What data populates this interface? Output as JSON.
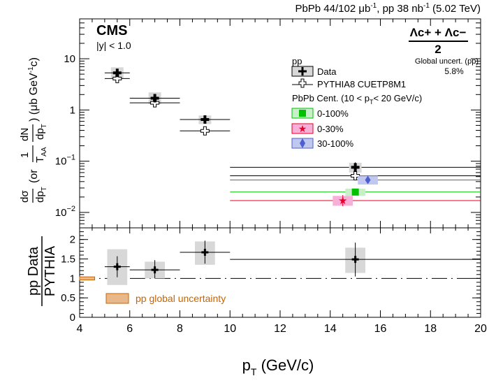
{
  "header": {
    "lumi_text": "PbPb 44/102 μb",
    "lumi_exp": "-1",
    "lumi_text2": ", pp 38 nb",
    "lumi_exp2": "-1",
    "lumi_text3": " (5.02 TeV)"
  },
  "top_panel": {
    "experiment": "CMS",
    "rapidity_cut": "|y| < 1.0",
    "particle_numerator": "Λc+ + Λc−",
    "particle_denominator": "2",
    "global_uncert_label": "Global uncert. (pp)",
    "global_uncert_value": "5.8%",
    "legend_pp_title": "pp",
    "legend_data": "Data",
    "legend_pythia": "PYTHIA8 CUETP8M1",
    "legend_pbpb_title": "PbPb Cent. (10 < p",
    "legend_pbpb_title_sub": "T",
    "legend_pbpb_title_end": "< 20 GeV/c)",
    "legend_0_100": "0-100%",
    "legend_0_30": "0-30%",
    "legend_30_100": "30-100%",
    "ylabel_parts": [
      "dσ",
      "dp",
      "T",
      "(or",
      "1",
      "T",
      "AA",
      "dN",
      "dp",
      "T",
      ") (μb GeV",
      "-1",
      "c)"
    ]
  },
  "bottom_panel": {
    "ylabel_num": "pp Data",
    "ylabel_den": "PYTHIA",
    "band_label": "pp global uncertainty"
  },
  "xaxis": {
    "label": "p",
    "label_sub": "T",
    "label_unit": " (GeV/c)"
  },
  "colors": {
    "green": "#00c000",
    "red": "#e8002a",
    "blue": "#4b5fd0",
    "orange_band": "#e8b88a",
    "orange_text": "#c86400"
  },
  "chart_data": [
    {
      "type": "scatter",
      "yscale": "log",
      "xlim": [
        4,
        20
      ],
      "ylim": [
        0.005,
        60
      ],
      "xticks": [
        4,
        6,
        8,
        10,
        12,
        14,
        16,
        18,
        20
      ],
      "yticks": [
        {
          "v": 0.01,
          "b": "10",
          "e": "−2"
        },
        {
          "v": 0.1,
          "b": "10",
          "e": "−1"
        },
        {
          "v": 1,
          "b": "1",
          "e": ""
        },
        {
          "v": 10,
          "b": "10",
          "e": ""
        }
      ],
      "series": [
        {
          "name": "Data",
          "points": [
            {
              "x": 5.5,
              "xlo": 5,
              "xhi": 6,
              "y": 5.3,
              "ylo": 4.5,
              "yhi": 6.1,
              "syslo": 4.1,
              "syshi": 6.8
            },
            {
              "x": 7,
              "xlo": 6,
              "xhi": 8,
              "y": 1.7,
              "ylo": 1.45,
              "yhi": 1.95,
              "syslo": 1.3,
              "syshi": 2.2
            },
            {
              "x": 9,
              "xlo": 8,
              "xhi": 10,
              "y": 0.65,
              "ylo": 0.55,
              "yhi": 0.75,
              "syslo": 0.53,
              "syshi": 0.78
            },
            {
              "x": 15,
              "xlo": 10,
              "xhi": 20,
              "y": 0.076,
              "ylo": 0.058,
              "yhi": 0.095,
              "syslo": 0.06,
              "syshi": 0.093
            }
          ]
        },
        {
          "name": "PYTHIA8 CUETP8M1",
          "points": [
            {
              "x": 5.5,
              "xlo": 5,
              "xhi": 6,
              "y": 4.1
            },
            {
              "x": 7,
              "xlo": 6,
              "xhi": 8,
              "y": 1.38
            },
            {
              "x": 9,
              "xlo": 8,
              "xhi": 10,
              "y": 0.39
            },
            {
              "x": 15,
              "xlo": 10,
              "xhi": 20,
              "y": 0.052
            }
          ]
        },
        {
          "name": "0-100%",
          "points": [
            {
              "x": 15,
              "xlo": 10,
              "xhi": 20,
              "y": 0.025,
              "syslo": 0.021,
              "syshi": 0.029
            }
          ],
          "refline": 0.025
        },
        {
          "name": "0-30%",
          "points": [
            {
              "x": 14.5,
              "xlo": 10,
              "xhi": 20,
              "y": 0.017,
              "syslo": 0.0135,
              "syshi": 0.021
            }
          ],
          "refline": 0.017
        },
        {
          "name": "30-100%",
          "points": [
            {
              "x": 15.5,
              "xlo": 10,
              "xhi": 20,
              "y": 0.043,
              "syslo": 0.035,
              "syshi": 0.052
            }
          ],
          "refline": 0.043
        }
      ]
    },
    {
      "type": "scatter",
      "xlim": [
        4,
        20
      ],
      "ylim": [
        0,
        2.3
      ],
      "xticks": [
        4,
        6,
        8,
        10,
        12,
        14,
        16,
        18,
        20
      ],
      "yticks": [
        0,
        0.5,
        1,
        1.5,
        2
      ],
      "series": [
        {
          "name": "pp Data / PYTHIA",
          "points": [
            {
              "x": 5.5,
              "xlo": 5,
              "xhi": 6,
              "y": 1.3,
              "ylo": 1.03,
              "yhi": 1.57,
              "syslo": 0.83,
              "syshi": 1.75
            },
            {
              "x": 7,
              "xlo": 6,
              "xhi": 8,
              "y": 1.22,
              "ylo": 1.0,
              "yhi": 1.47,
              "syslo": 1.0,
              "syshi": 1.43
            },
            {
              "x": 9,
              "xlo": 8,
              "xhi": 10,
              "y": 1.67,
              "ylo": 1.38,
              "yhi": 1.97,
              "syslo": 1.35,
              "syshi": 1.95
            },
            {
              "x": 15,
              "xlo": 10,
              "xhi": 20,
              "y": 1.49,
              "ylo": 1.05,
              "yhi": 1.92,
              "syslo": 1.14,
              "syshi": 1.79
            }
          ]
        }
      ],
      "unity_line": 1,
      "global_band": {
        "xlo": 4,
        "xhi": 4.6,
        "ylo": 0.96,
        "yhi": 1.04
      }
    }
  ]
}
